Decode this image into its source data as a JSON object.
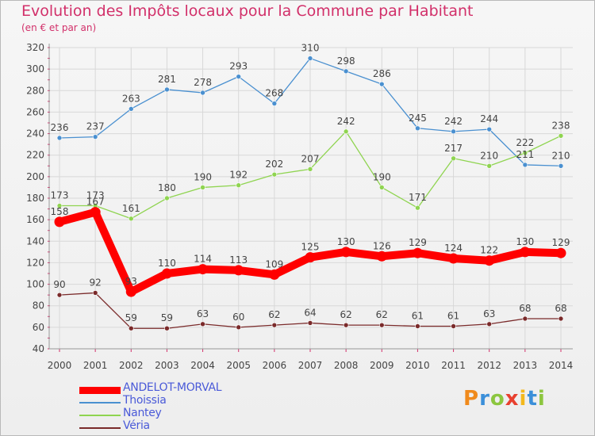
{
  "title": "Evolution des Impôts locaux pour la Commune par Habitant",
  "subtitle": "(en € et par an)",
  "logo_text": "Proxiti",
  "chart_data": {
    "type": "line",
    "title": "Evolution des Impôts locaux pour la Commune par Habitant",
    "subtitle": "(en € et par an)",
    "xlabel": "",
    "ylabel": "",
    "x": [
      "2000",
      "2001",
      "2002",
      "2003",
      "2004",
      "2005",
      "2006",
      "2007",
      "2008",
      "2009",
      "2010",
      "2011",
      "2012",
      "2013",
      "2014"
    ],
    "ylim": [
      40,
      320
    ],
    "yticks": [
      40,
      60,
      80,
      100,
      120,
      140,
      160,
      180,
      200,
      220,
      240,
      260,
      280,
      300,
      320
    ],
    "grid": true,
    "legend_position": "bottom-left",
    "series": [
      {
        "name": "ANDELOT-MORVAL",
        "color": "#ff0000",
        "values": [
          158,
          167,
          93,
          110,
          114,
          113,
          109,
          125,
          130,
          126,
          129,
          124,
          122,
          130,
          129
        ]
      },
      {
        "name": "Thoissia",
        "color": "#4a90d0",
        "values": [
          236,
          237,
          263,
          281,
          278,
          293,
          268,
          310,
          298,
          286,
          245,
          242,
          244,
          211,
          210
        ]
      },
      {
        "name": "Nantey",
        "color": "#8fd450",
        "values": [
          173,
          173,
          161,
          180,
          190,
          192,
          202,
          207,
          242,
          190,
          171,
          217,
          210,
          222,
          238
        ]
      },
      {
        "name": "Véria",
        "color": "#7a2a2a",
        "values": [
          90,
          92,
          59,
          59,
          63,
          60,
          62,
          64,
          62,
          62,
          61,
          61,
          63,
          68,
          68
        ]
      }
    ]
  }
}
